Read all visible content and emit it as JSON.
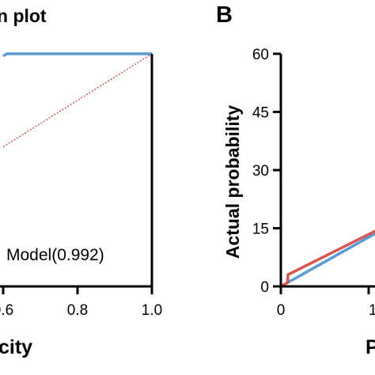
{
  "charts": [
    {
      "title": "n plot",
      "xlabel": "city",
      "legend": "Model(0.992)"
    },
    {
      "panel_label": "B",
      "xlabel": "P",
      "ylabel": "Actual probability"
    }
  ],
  "chart_data": [
    {
      "type": "line",
      "title": "n plot",
      "xlabel": "city",
      "ylabel": "",
      "xlim": [
        0.6,
        1.0
      ],
      "ylim": [
        0,
        1.0
      ],
      "x_ticks": [
        "0.6",
        "0.8",
        "1.0"
      ],
      "legend": "Model(0.992)",
      "grid": false,
      "series": [
        {
          "name": "Model(0.992)",
          "color": "#5b9bd5",
          "x": [
            0.6,
            0.61,
            0.62,
            0.63,
            0.8,
            1.0
          ],
          "y": [
            0.99,
            1.0,
            1.0,
            1.0,
            1.0,
            1.0
          ]
        },
        {
          "name": "",
          "color": "#c0392b",
          "style": "dotted",
          "x": [
            0.6,
            1.0
          ],
          "y": [
            0.6,
            1.0
          ]
        }
      ]
    },
    {
      "type": "line",
      "panel_label": "B",
      "xlabel": "P",
      "ylabel": "Actual probability",
      "xlim": [
        0,
        15
      ],
      "ylim": [
        0,
        60
      ],
      "y_ticks": [
        "0",
        "15",
        "30",
        "45",
        "60"
      ],
      "x_ticks": [
        "0",
        "1"
      ],
      "grid": false,
      "series": [
        {
          "name": "",
          "color": "#5b9bd5",
          "x": [
            0,
            16
          ],
          "y": [
            0,
            15
          ]
        },
        {
          "name": "",
          "color": "#d9534f",
          "x": [
            0,
            1.05,
            1.1,
            1.2,
            16
          ],
          "y": [
            0,
            1.0,
            3.0,
            3.1,
            15.5
          ]
        }
      ]
    }
  ]
}
